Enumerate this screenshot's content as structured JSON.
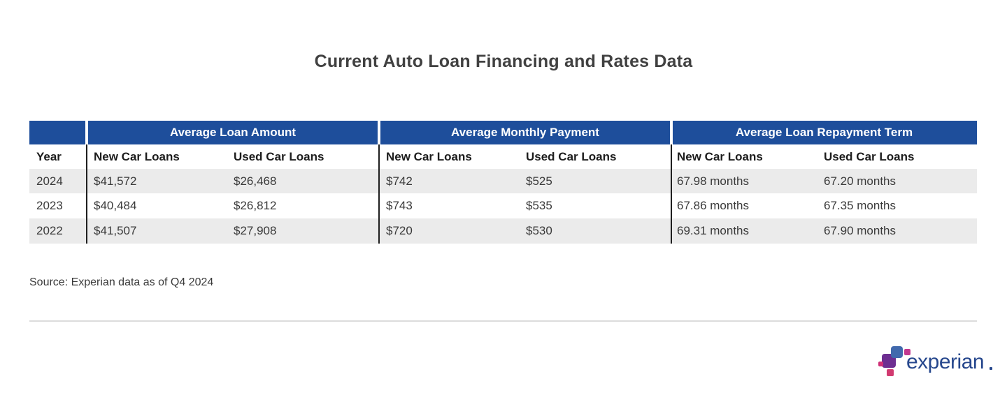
{
  "page": {
    "title": "Current Auto Loan Financing and Rates Data",
    "source_note": "Source: Experian data as of Q4 2024"
  },
  "table": {
    "year_header": "Year",
    "groups": [
      {
        "label": "Average Loan Amount",
        "columns": [
          "New Car Loans",
          "Used Car Loans"
        ]
      },
      {
        "label": "Average Monthly Payment",
        "columns": [
          "New Car Loans",
          "Used Car Loans"
        ]
      },
      {
        "label": "Average Loan Repayment Term",
        "columns": [
          "New Car Loans",
          "Used Car Loans"
        ]
      }
    ],
    "rows": [
      {
        "year": "2024",
        "values": [
          "$41,572",
          "$26,468",
          "$742",
          "$525",
          "67.98 months",
          "67.20 months"
        ]
      },
      {
        "year": "2023",
        "values": [
          "$40,484",
          "$26,812",
          "$743",
          "$535",
          "67.86 months",
          "67.35 months"
        ]
      },
      {
        "year": "2022",
        "values": [
          "$41,507",
          "$27,908",
          "$720",
          "$530",
          "69.31 months",
          "67.90 months"
        ]
      }
    ]
  },
  "branding": {
    "logo_text": "experian",
    "logo_colors": {
      "wordmark": "#26478d",
      "blue_square": "#4169ad",
      "violet_square": "#6d2e91",
      "magenta_square": "#c2388f",
      "pink_square": "#d13a70"
    }
  },
  "colors": {
    "header_blue": "#1e4e9b",
    "row_alt_gray": "#ebebeb",
    "separator_black": "#1f1f1f",
    "divider_gray": "#dcdcdc",
    "text_dark": "#3a3a3a"
  },
  "chart_data": {
    "type": "table",
    "title": "Current Auto Loan Financing and Rates Data",
    "column_groups": [
      "Average Loan Amount",
      "Average Monthly Payment",
      "Average Loan Repayment Term"
    ],
    "columns": [
      "Year",
      "Loan Amount New Car",
      "Loan Amount Used Car",
      "Monthly Payment New Car",
      "Monthly Payment Used Car",
      "Repayment Term New Car (months)",
      "Repayment Term Used Car (months)"
    ],
    "rows": [
      [
        2024,
        41572,
        26468,
        742,
        525,
        67.98,
        67.2
      ],
      [
        2023,
        40484,
        26812,
        743,
        535,
        67.86,
        67.35
      ],
      [
        2022,
        41507,
        27908,
        720,
        530,
        69.31,
        67.9
      ]
    ],
    "source": "Source: Experian data as of Q4 2024"
  }
}
